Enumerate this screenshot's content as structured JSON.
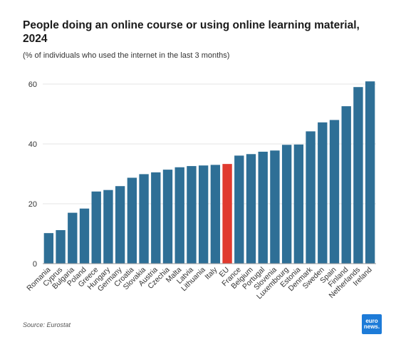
{
  "header": {
    "title": "People doing an online course or using online learning material, 2024",
    "subtitle": "(% of individuals who used the internet in the last 3 months)"
  },
  "footer": {
    "source": "Source: Eurostat",
    "logo_line1": "euro",
    "logo_line2": "news."
  },
  "colors": {
    "bar": "#2e6f96",
    "highlight": "#e03a2f",
    "grid": "#e6e6e6",
    "axis": "#999999"
  },
  "chart_data": {
    "type": "bar",
    "title": "People doing an online course or using online learning material, 2024",
    "subtitle": "(% of individuals who used the internet in the last 3 months)",
    "categories": [
      "Romania",
      "Cyprus",
      "Bulgaria",
      "Poland",
      "Greece",
      "Hungary",
      "Germany",
      "Croatia",
      "Slovakia",
      "Austria",
      "Czechia",
      "Malta",
      "Latvia",
      "Lithuania",
      "Italy",
      "EU",
      "France",
      "Belgium",
      "Portugal",
      "Slovenia",
      "Luxembourg",
      "Estonia",
      "Denmark",
      "Sweden",
      "Spain",
      "Finland",
      "Netherlands",
      "Ireland"
    ],
    "values": [
      10.2,
      11.2,
      17.0,
      18.4,
      24.1,
      24.6,
      25.9,
      28.7,
      29.9,
      30.5,
      31.4,
      32.2,
      32.6,
      32.8,
      33.0,
      33.3,
      36.1,
      36.6,
      37.4,
      37.8,
      39.7,
      39.8,
      44.2,
      47.2,
      48.0,
      52.6,
      59.0,
      60.9
    ],
    "highlight_category": "EU",
    "xlabel": "",
    "ylabel": "",
    "ylim": [
      0,
      62
    ],
    "yticks": [
      0,
      20,
      40,
      60
    ],
    "grid": true,
    "legend": "none"
  }
}
